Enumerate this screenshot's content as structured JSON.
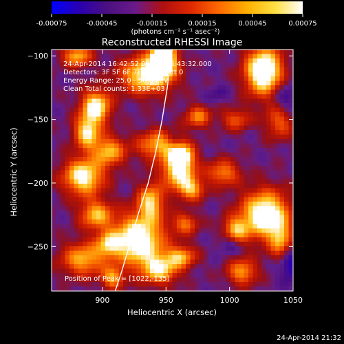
{
  "chart_data": {
    "type": "heatmap",
    "title": "Reconstructed RHESSI Image",
    "xlabel": "Heliocentric X (arcsec)",
    "ylabel": "Heliocentric Y (arcsec)",
    "xlim": [
      860,
      1050
    ],
    "ylim": [
      -285,
      -95
    ],
    "x_ticks": [
      900,
      950,
      1000,
      1050
    ],
    "y_ticks": [
      -100,
      -150,
      -200,
      -250
    ],
    "colorbar": {
      "min": -0.00075,
      "max": 0.00075,
      "ticks": [
        "-0.00075",
        "-0.00045",
        "-0.00015",
        "0.00015",
        "0.00045",
        "0.00075"
      ],
      "tick_values": [
        -0.00075,
        -0.00045,
        -0.00015,
        0.00015,
        0.00045,
        0.00075
      ],
      "unit_label": "(photons cm⁻² s⁻¹ asec⁻²)",
      "colormap": [
        "#0000ff",
        "#2a00b0",
        "#4b1080",
        "#6a1a8a",
        "#b01010",
        "#e02800",
        "#ff6a00",
        "#ffb000",
        "#ffe040",
        "#ffffff"
      ]
    },
    "annotations": [
      "24-Apr-2014 16:42:52.000 to 16:43:32.000",
      "Detectors: 3F 5F 6F 7F 8F 9F, Att 0",
      "Energy Range: 25.0 - 50.0 keV",
      "Clean     Total counts: 1.33E+03"
    ],
    "peak_label": "Position of Peak = [1022,-135]",
    "limb_curve": [
      [
        910,
        -285
      ],
      [
        915,
        -270
      ],
      [
        921,
        -250
      ],
      [
        928,
        -225
      ],
      [
        936,
        -200
      ],
      [
        942,
        -175
      ],
      [
        947,
        -150
      ],
      [
        951,
        -125
      ],
      [
        954,
        -100
      ],
      [
        955,
        -95
      ]
    ],
    "blobs": [
      {
        "x": 948,
        "y": -100,
        "a": 1.0,
        "sx": 7,
        "sy": 10
      },
      {
        "x": 935,
        "y": -115,
        "a": 0.75,
        "sx": 14,
        "sy": 10
      },
      {
        "x": 880,
        "y": -100,
        "a": 0.55,
        "sx": 8,
        "sy": 6
      },
      {
        "x": 1027,
        "y": -112,
        "a": 0.95,
        "sx": 10,
        "sy": 13
      },
      {
        "x": 1040,
        "y": -150,
        "a": 0.5,
        "sx": 8,
        "sy": 10
      },
      {
        "x": 895,
        "y": -140,
        "a": 0.75,
        "sx": 8,
        "sy": 9
      },
      {
        "x": 888,
        "y": -160,
        "a": 0.65,
        "sx": 7,
        "sy": 9
      },
      {
        "x": 905,
        "y": -175,
        "a": 0.55,
        "sx": 9,
        "sy": 8
      },
      {
        "x": 885,
        "y": -195,
        "a": 0.75,
        "sx": 11,
        "sy": 10
      },
      {
        "x": 895,
        "y": -225,
        "a": 0.55,
        "sx": 9,
        "sy": 8
      },
      {
        "x": 885,
        "y": -260,
        "a": 0.55,
        "sx": 12,
        "sy": 9
      },
      {
        "x": 905,
        "y": -248,
        "a": 0.45,
        "sx": 7,
        "sy": 7
      },
      {
        "x": 945,
        "y": -170,
        "a": 0.55,
        "sx": 12,
        "sy": 8
      },
      {
        "x": 963,
        "y": -178,
        "a": 0.5,
        "sx": 6,
        "sy": 6
      },
      {
        "x": 960,
        "y": -190,
        "a": 0.75,
        "sx": 9,
        "sy": 10
      },
      {
        "x": 970,
        "y": -205,
        "a": 0.5,
        "sx": 7,
        "sy": 6
      },
      {
        "x": 938,
        "y": -215,
        "a": 0.6,
        "sx": 7,
        "sy": 10
      },
      {
        "x": 928,
        "y": -245,
        "a": 0.85,
        "sx": 14,
        "sy": 14
      },
      {
        "x": 945,
        "y": -268,
        "a": 0.6,
        "sx": 10,
        "sy": 8
      },
      {
        "x": 908,
        "y": -275,
        "a": 0.5,
        "sx": 6,
        "sy": 6
      },
      {
        "x": 962,
        "y": -258,
        "a": 0.5,
        "sx": 8,
        "sy": 6
      },
      {
        "x": 995,
        "y": -192,
        "a": 0.45,
        "sx": 9,
        "sy": 7
      },
      {
        "x": 975,
        "y": -148,
        "a": 0.45,
        "sx": 7,
        "sy": 6
      },
      {
        "x": 1028,
        "y": -225,
        "a": 0.85,
        "sx": 13,
        "sy": 13
      },
      {
        "x": 1005,
        "y": -237,
        "a": 0.5,
        "sx": 7,
        "sy": 7
      },
      {
        "x": 1040,
        "y": -245,
        "a": 0.45,
        "sx": 6,
        "sy": 10
      },
      {
        "x": 1010,
        "y": -270,
        "a": 0.5,
        "sx": 8,
        "sy": 7
      },
      {
        "x": 1005,
        "y": -150,
        "a": 0.35,
        "sx": 8,
        "sy": 6
      },
      {
        "x": 965,
        "y": -232,
        "a": 0.4,
        "sx": 7,
        "sy": 6
      }
    ],
    "dark_spots": [
      {
        "x": 1043,
        "y": -138,
        "a": 1.0,
        "sx": 8,
        "sy": 12
      },
      {
        "x": 1047,
        "y": -265,
        "a": 0.8,
        "sx": 6,
        "sy": 10
      },
      {
        "x": 1000,
        "y": -248,
        "a": 0.6,
        "sx": 6,
        "sy": 5
      },
      {
        "x": 955,
        "y": -165,
        "a": 0.5,
        "sx": 5,
        "sy": 5
      },
      {
        "x": 990,
        "y": -130,
        "a": 0.4,
        "sx": 6,
        "sy": 5
      }
    ]
  },
  "footer": {
    "timestamp": "24-Apr-2014 21:32"
  }
}
